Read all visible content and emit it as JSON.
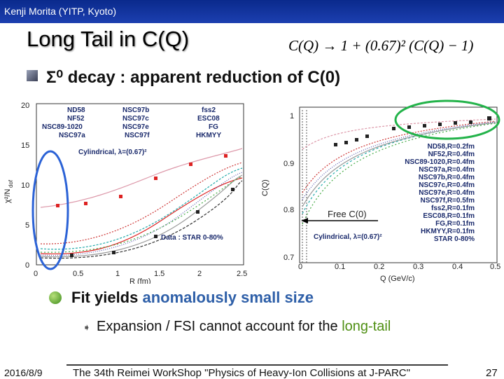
{
  "header": {
    "author": "Kenji Morita (YITP, Kyoto)",
    "title": "Long Tail in C(Q)",
    "formula": "C(Q) → 1 + (0.67)² (C(Q) − 1)",
    "bullet": "Σ⁰ decay : apparent reduction of C(0)"
  },
  "left_panel": {
    "ylabel": "χ²/N",
    "ylabel_sub": "dof",
    "xlabel": "R (fm)",
    "legend_col1": [
      "ND58",
      "NF52",
      "NSC89-1020",
      "NSC97a"
    ],
    "legend_col2": [
      "NSC97b",
      "NSC97c",
      "NSC97e",
      "NSC97f"
    ],
    "legend_col3": [
      "fss2",
      "ESC08",
      "FG",
      "HKMYY"
    ],
    "annotation_cyl": "Cylindrical, λ=(0.67)²",
    "annotation_data": "Data : STAR 0-80%",
    "yticks": [
      "0",
      "5",
      "10",
      "15",
      "20"
    ],
    "xticks": [
      "0",
      "0.5",
      "1",
      "1.5",
      "2",
      "2.5"
    ]
  },
  "right_panel": {
    "ylabel": "C(Q)",
    "xlabel": "Q (GeV/c)",
    "legend": [
      "ND58,R=0.2fm",
      "NF52,R=0.4fm",
      "NSC89-1020,R=0.4fm",
      "NSC97a,R=0.4fm",
      "NSC97b,R=0.4fm",
      "NSC97c,R=0.4fm",
      "NSC97e,R=0.4fm",
      "NSC97f,R=0.5fm",
      "fss2,R=0.1fm",
      "ESC08,R=0.1fm",
      "FG,R=0.1fm",
      "HKMYY,R=0.1fm",
      "STAR 0-80%"
    ],
    "annotation_free": "Free C(0)",
    "annotation_cyl": "Cylindrical, λ=(0.67)²",
    "yticks": [
      "0.7",
      "0.8",
      "0.9",
      "1"
    ],
    "xticks": [
      "0",
      "0.1",
      "0.2",
      "0.3",
      "0.4",
      "0.5"
    ]
  },
  "body": {
    "fit_prefix": "Fit yields ",
    "fit_highlight": "anomalously small size",
    "sub_prefix": "Expansion / FSI cannot account for the ",
    "sub_highlight": "long-tail"
  },
  "footer": {
    "date": "2016/8/9",
    "event": "The 34th Reimei WorkShop \"Physics of Heavy-Ion Collisions at J-PARC\"",
    "page": "27"
  },
  "colors": {
    "header_bar": "#1c3fb0",
    "highlight_blue": "#2e5fa8",
    "highlight_green": "#4f8f13",
    "oval_blue": "#2b62d6",
    "oval_green": "#23b34a"
  }
}
